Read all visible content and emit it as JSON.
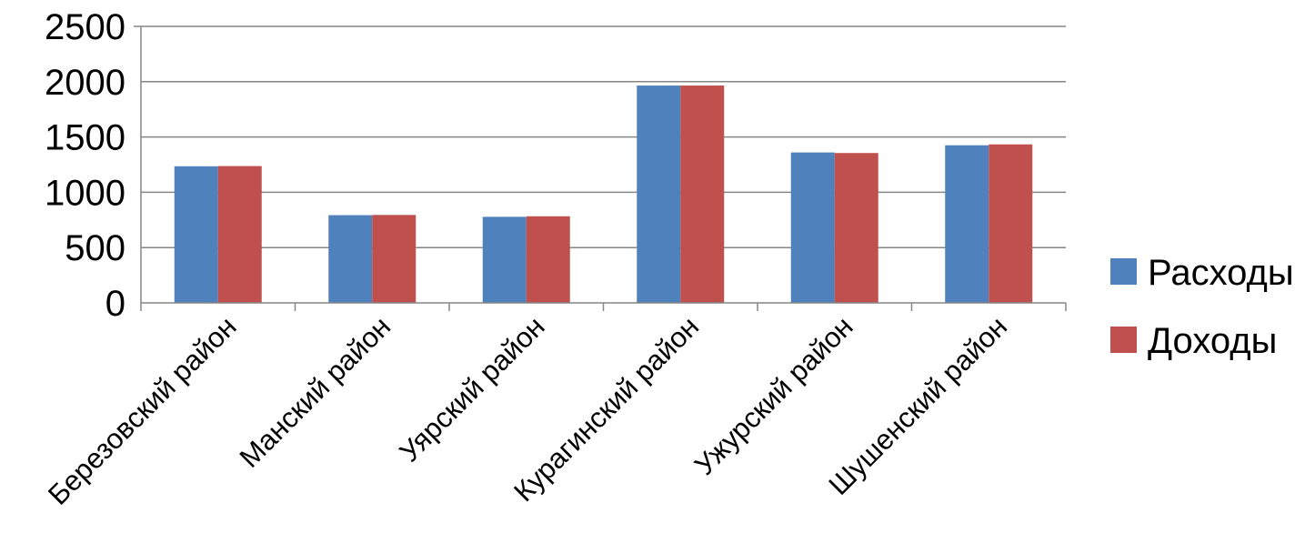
{
  "chart_data": {
    "type": "bar",
    "categories": [
      "Березовский район",
      "Манский район",
      "Уярский район",
      "Курагинский район",
      "Ужурский район",
      "Шушенский район"
    ],
    "series": [
      {
        "name": "Расходы",
        "color": "#4F81BD",
        "values": [
          1235,
          793,
          778,
          1965,
          1360,
          1425
        ]
      },
      {
        "name": "Доходы",
        "color": "#C0504D",
        "values": [
          1237,
          795,
          783,
          1965,
          1355,
          1433
        ]
      }
    ],
    "y_ticks": [
      "0",
      "500",
      "1000",
      "1500",
      "2000",
      "2500"
    ],
    "ylim": [
      0,
      2500
    ],
    "grid": true,
    "legend_position": "right"
  }
}
